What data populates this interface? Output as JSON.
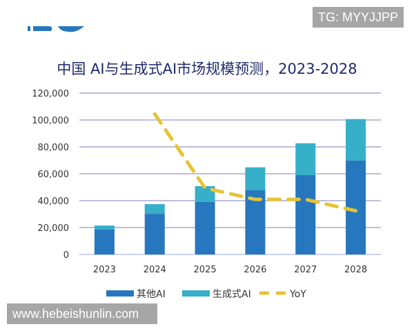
{
  "watermarks": {
    "top_right": "TG: MYYJJPP",
    "bottom_left": "www.hebeishunlin.com"
  },
  "chart_data": {
    "type": "bar",
    "stacked": true,
    "title": "中国 AI与生成式AI市场规模预测，2023-2028",
    "xlabel": "",
    "ylabel": "",
    "categories": [
      "2023",
      "2024",
      "2025",
      "2026",
      "2027",
      "2028"
    ],
    "ylim": [
      0,
      120000
    ],
    "yticks": [
      "0",
      "20,000",
      "40,000",
      "60,000",
      "80,000",
      "100,000",
      "120,000"
    ],
    "grid": true,
    "legend_position": "bottom",
    "series": [
      {
        "name": "其他AI",
        "type": "bar",
        "color": "#2677bd",
        "values": [
          18500,
          30200,
          39000,
          47900,
          59000,
          69900
        ]
      },
      {
        "name": "生成式AI",
        "type": "bar",
        "color": "#36afc8",
        "values": [
          3000,
          7200,
          11800,
          16900,
          23700,
          30800
        ]
      },
      {
        "name": "YoY",
        "type": "line",
        "style": "dashed",
        "color": "#e6c436",
        "axis": "secondary-hidden",
        "unit": "%",
        "values": [
          null,
          74,
          35,
          29,
          29,
          23
        ]
      }
    ],
    "y2lim": [
      0,
      85
    ]
  }
}
